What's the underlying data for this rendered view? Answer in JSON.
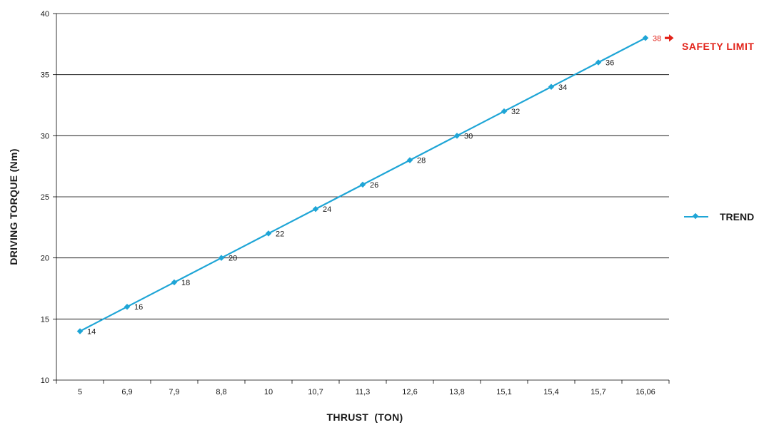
{
  "chart_data": {
    "type": "line",
    "categories": [
      "5",
      "6,9",
      "7,9",
      "8,8",
      "10",
      "10,7",
      "11,3",
      "12,6",
      "13,8",
      "15,1",
      "15,4",
      "15,7",
      "16,06"
    ],
    "series": [
      {
        "name": "TREND",
        "values": [
          14,
          16,
          18,
          20,
          22,
          24,
          26,
          28,
          30,
          32,
          34,
          36,
          38
        ]
      }
    ],
    "data_labels": [
      "14",
      "16",
      "18",
      "20",
      "22",
      "24",
      "26",
      "28",
      "30",
      "32",
      "34",
      "36",
      "38"
    ],
    "y_ticks": [
      10,
      15,
      20,
      25,
      30,
      35,
      40
    ],
    "ylim": [
      10,
      40
    ],
    "xlabel": "THRUST  (TON)",
    "ylabel": "DRIVING TORQUE (Nm)",
    "grid": "horizontal",
    "legend_position": "right",
    "annotation": {
      "text": "SAFETY LIMIT",
      "point_value": 38
    },
    "colors": {
      "series": "#1ea5d6",
      "highlight": "#e2231a",
      "grid": "#000000",
      "text": "#1a1a1a"
    }
  }
}
